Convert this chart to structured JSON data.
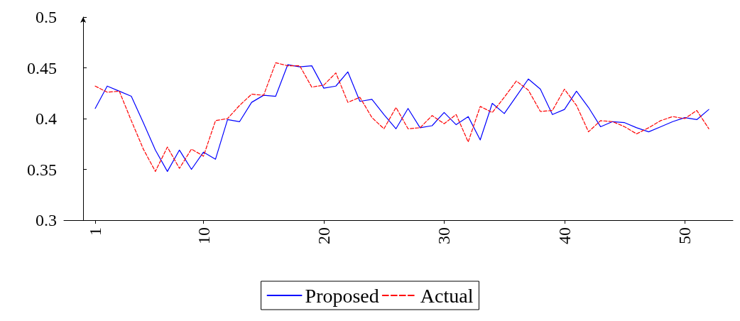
{
  "chart_data": {
    "type": "line",
    "x": [
      1,
      2,
      3,
      4,
      5,
      6,
      7,
      8,
      9,
      10,
      11,
      12,
      13,
      14,
      15,
      16,
      17,
      18,
      19,
      20,
      21,
      22,
      23,
      24,
      25,
      26,
      27,
      28,
      29,
      30,
      31,
      32,
      33,
      34,
      35,
      36,
      37,
      38,
      39,
      40,
      41,
      42,
      43,
      44,
      45,
      46,
      47,
      48,
      49,
      50,
      51,
      52
    ],
    "series": [
      {
        "name": "Proposed",
        "color": "#0000ff",
        "line_style": "solid",
        "values": [
          0.41,
          0.432,
          0.427,
          0.422,
          0.396,
          0.369,
          0.348,
          0.369,
          0.35,
          0.367,
          0.36,
          0.399,
          0.397,
          0.416,
          0.423,
          0.422,
          0.453,
          0.451,
          0.452,
          0.43,
          0.432,
          0.446,
          0.417,
          0.419,
          0.404,
          0.39,
          0.41,
          0.391,
          0.393,
          0.406,
          0.394,
          0.402,
          0.379,
          0.415,
          0.405,
          0.422,
          0.439,
          0.429,
          0.404,
          0.409,
          0.427,
          0.411,
          0.392,
          0.397,
          0.396,
          0.391,
          0.387,
          0.392,
          0.397,
          0.401,
          0.399,
          0.409
        ]
      },
      {
        "name": "Actual",
        "color": "#ff0000",
        "line_style": "dashed",
        "values": [
          0.432,
          0.426,
          0.427,
          0.398,
          0.37,
          0.348,
          0.372,
          0.351,
          0.37,
          0.363,
          0.398,
          0.4,
          0.413,
          0.424,
          0.423,
          0.455,
          0.452,
          0.452,
          0.431,
          0.433,
          0.445,
          0.416,
          0.421,
          0.401,
          0.39,
          0.411,
          0.39,
          0.391,
          0.403,
          0.395,
          0.404,
          0.377,
          0.412,
          0.406,
          0.421,
          0.437,
          0.428,
          0.407,
          0.408,
          0.429,
          0.413,
          0.387,
          0.398,
          0.397,
          0.392,
          0.385,
          0.391,
          0.398,
          0.402,
          0.4,
          0.408,
          0.39
        ]
      }
    ],
    "xlim": [
      -1.6,
      54
    ],
    "xticks": [
      1,
      10,
      20,
      30,
      40,
      50
    ],
    "ylim": [
      0.3,
      0.5
    ],
    "yticks": [
      0.3,
      0.35,
      0.4,
      0.45,
      0.5
    ],
    "grid": false,
    "legend": "bottom",
    "marker": "none"
  }
}
